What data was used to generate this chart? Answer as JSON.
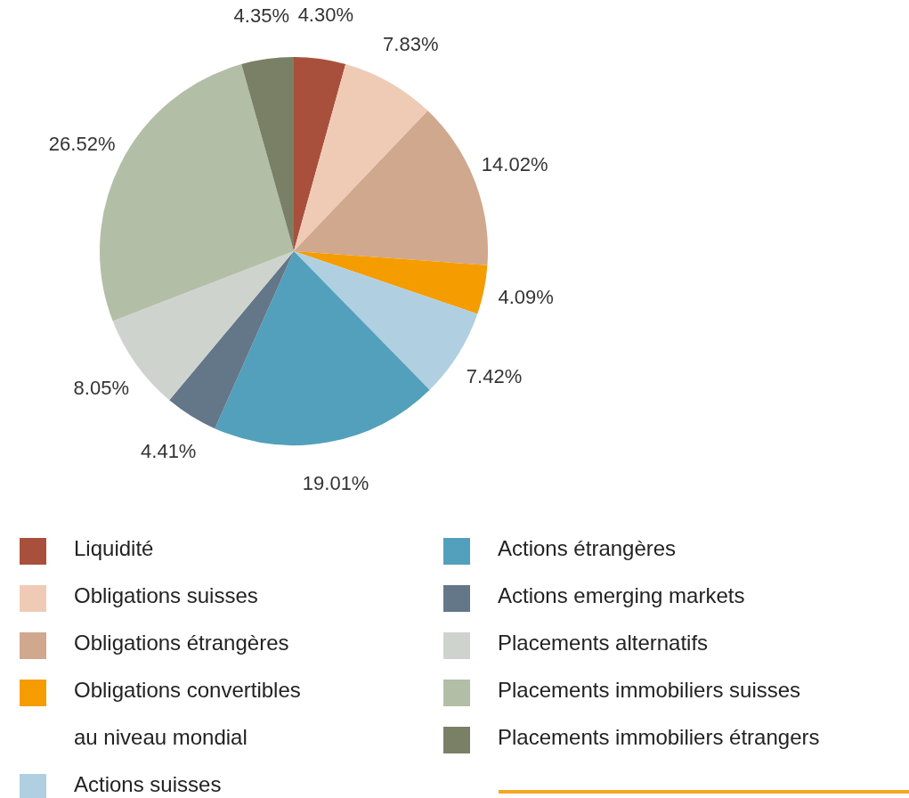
{
  "chart_data": {
    "type": "pie",
    "categories": [
      "Liquidité",
      "Obligations suisses",
      "Obligations étrangères",
      "Obligations convertibles au niveau mondial",
      "Actions suisses",
      "Actions étrangères",
      "Actions emerging markets",
      "Placements alternatifs",
      "Placements immobiliers suisses",
      "Placements immobiliers étrangers"
    ],
    "values": [
      4.3,
      7.83,
      14.02,
      4.09,
      7.42,
      19.01,
      4.41,
      8.05,
      26.52,
      4.35
    ],
    "colors": [
      "#a9503c",
      "#efcbb6",
      "#cfa88e",
      "#f59c00",
      "#b0cfe0",
      "#52a0bb",
      "#637788",
      "#cfd3ce",
      "#b3bea6",
      "#7a8066"
    ],
    "value_labels": [
      "4.30%",
      "7.83%",
      "14.02%",
      "4.09%",
      "7.42%",
      "19.01%",
      "4.41%",
      "8.05%",
      "26.52%",
      "4.35%"
    ],
    "legend": "bottom"
  }
}
